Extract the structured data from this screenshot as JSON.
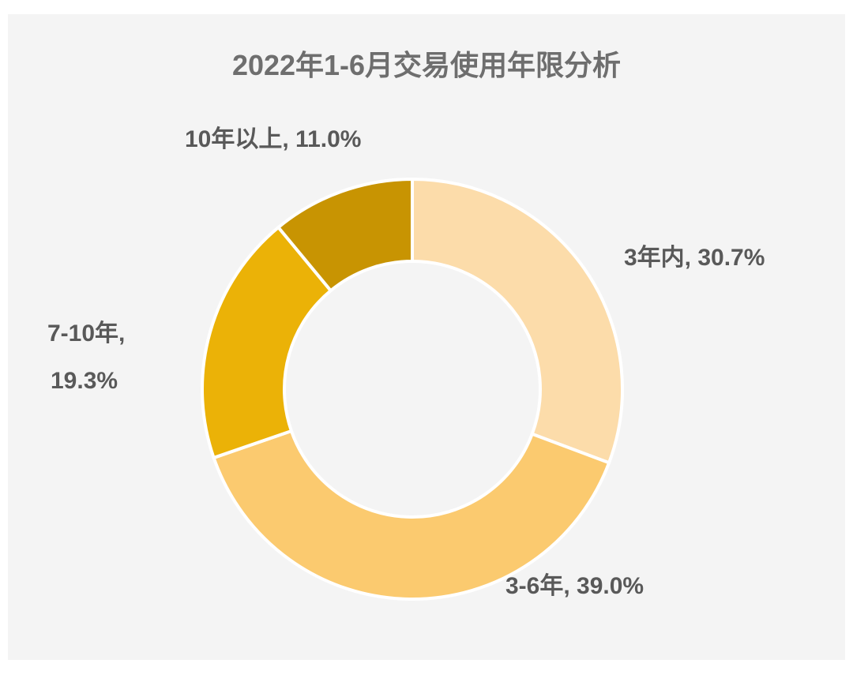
{
  "chart_data": {
    "type": "pie",
    "subtype": "donut",
    "title": "2022年1-6月交易使用年限分析",
    "legend": "none",
    "slices": [
      {
        "label": "3年内",
        "value": 30.7,
        "display": "3年内, 30.7%",
        "color": "#fcdcaa"
      },
      {
        "label": "3-6年",
        "value": 39.0,
        "display": "3-6年, 39.0%",
        "color": "#fbca6f"
      },
      {
        "label": "7-10年",
        "value": 19.3,
        "display_lines": [
          "7-10年,",
          "19.3%"
        ],
        "color": "#ebb207"
      },
      {
        "label": "10年以上",
        "value": 11.0,
        "display": "10年以上, 11.0%",
        "color": "#c89402"
      }
    ]
  }
}
